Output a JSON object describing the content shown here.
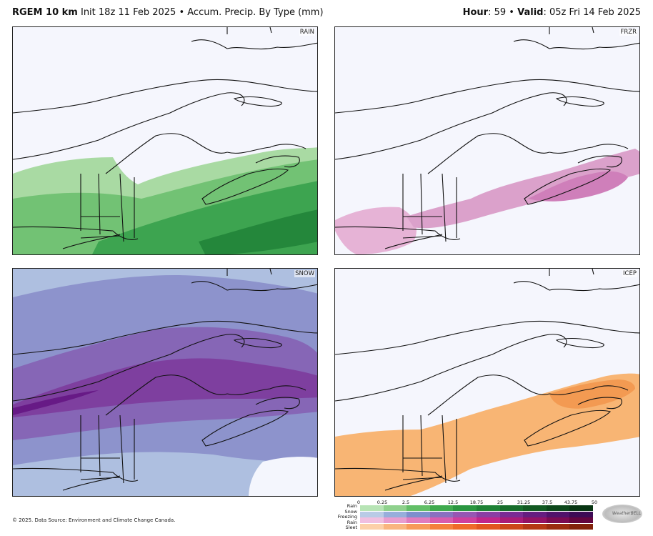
{
  "header": {
    "model": "RGEM 10 km",
    "init": "Init 18z 11 Feb 2025",
    "separator": "•",
    "product": "Accum. Precip. By Type (mm)",
    "hour_label": "Hour",
    "hour_value": ": 59",
    "valid_label": "Valid",
    "valid_value": ": 05z Fri 14 Feb 2025"
  },
  "panels": [
    {
      "label": "RAIN",
      "fill": "#4caf50"
    },
    {
      "label": "FRZR",
      "fill": "#d98cc6"
    },
    {
      "label": "SNOW",
      "fill": "#7b5bb0"
    },
    {
      "label": "ICEP",
      "fill": "#f5a35a"
    }
  ],
  "legend": {
    "ticks": [
      "0",
      "0.25",
      "2.5",
      "6.25",
      "12.5",
      "18.75",
      "25",
      "31.25",
      "37.5",
      "43.75",
      "50"
    ],
    "rows": [
      {
        "label": "Rain",
        "colors": [
          "#b7e4b5",
          "#8fd18d",
          "#62bf67",
          "#3faa4e",
          "#2a9640",
          "#1e8235",
          "#176d2b",
          "#125a22",
          "#0c471a",
          "#073512"
        ]
      },
      {
        "label": "Snow",
        "colors": [
          "#b9cbe6",
          "#97aedb",
          "#7e8fcd",
          "#8a70c0",
          "#9656b3",
          "#8a3ea4",
          "#7a2a94",
          "#651d80",
          "#51136b",
          "#3d0b55"
        ]
      },
      {
        "label": "Freezing Rain",
        "colors": [
          "#f0bfe0",
          "#e89dcf",
          "#e07cbf",
          "#d85cae",
          "#cf3f9d",
          "#c0268a",
          "#a91b77",
          "#921264",
          "#7a0b52",
          "#62053f"
        ]
      },
      {
        "label": "Sleet",
        "colors": [
          "#fcd0a8",
          "#f9b57f",
          "#f79a5a",
          "#f4803d",
          "#ef6a2a",
          "#e2561f",
          "#cc4619",
          "#b43814",
          "#9b2c0f",
          "#82220b"
        ]
      }
    ]
  },
  "footer": "© 2025. Data Source: Environment and Climate Change Canada.",
  "logo_text": "WeatherBELL"
}
